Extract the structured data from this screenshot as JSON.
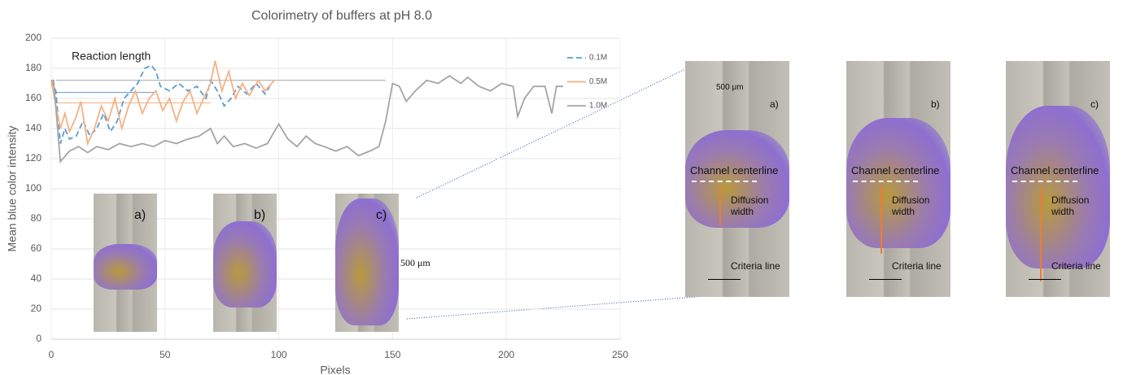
{
  "chart_data": {
    "type": "line",
    "title": "Colorimetry of buffers at pH 8.0",
    "xlabel": "Pixels",
    "ylabel": "Mean blue color intensity",
    "xlim": [
      0,
      250
    ],
    "xticks": [
      0,
      50,
      100,
      150,
      200,
      250
    ],
    "ylim": [
      0,
      200
    ],
    "yticks": [
      0,
      20,
      40,
      60,
      80,
      100,
      120,
      140,
      160,
      180,
      200
    ],
    "grid": true,
    "legend": "right",
    "annotation": "Reaction length",
    "series": [
      {
        "name": "0.1M",
        "color": "#5b9bd5",
        "dash": true,
        "x": [
          0,
          2,
          4,
          6,
          8,
          11,
          14,
          17,
          20,
          23,
          26,
          29,
          32,
          35,
          38,
          41,
          44,
          46,
          48,
          52,
          56,
          60,
          64,
          68,
          70,
          73,
          76,
          79,
          82,
          86,
          90,
          94,
          96
        ],
        "values": [
          172,
          165,
          130,
          140,
          133,
          135,
          145,
          135,
          140,
          150,
          138,
          145,
          160,
          165,
          170,
          180,
          182,
          178,
          168,
          165,
          170,
          165,
          168,
          160,
          172,
          165,
          155,
          160,
          168,
          163,
          170,
          163,
          168
        ]
      },
      {
        "name": "0.5M",
        "color": "#f4b183",
        "dash": false,
        "x": [
          0,
          2,
          4,
          6,
          8,
          11,
          13,
          16,
          19,
          22,
          25,
          28,
          31,
          34,
          37,
          40,
          43,
          46,
          49,
          52,
          55,
          58,
          61,
          64,
          67,
          70,
          72,
          75,
          78,
          81,
          84,
          87,
          91,
          94,
          98
        ],
        "values": [
          172,
          155,
          140,
          150,
          138,
          148,
          158,
          130,
          140,
          155,
          145,
          160,
          140,
          155,
          165,
          150,
          160,
          165,
          152,
          160,
          145,
          158,
          165,
          150,
          160,
          170,
          185,
          165,
          178,
          160,
          170,
          162,
          172,
          165,
          172
        ]
      },
      {
        "name": "1.0M",
        "color": "#a5a5a5",
        "dash": false,
        "x": [
          0,
          1,
          4,
          8,
          12,
          16,
          20,
          25,
          30,
          35,
          40,
          45,
          50,
          55,
          60,
          65,
          70,
          73,
          76,
          80,
          85,
          90,
          95,
          100,
          104,
          108,
          112,
          116,
          120,
          125,
          130,
          135,
          140,
          144,
          147,
          150,
          153,
          156,
          160,
          165,
          170,
          175,
          180,
          183,
          188,
          193,
          198,
          203,
          205,
          208,
          212,
          217,
          220,
          222,
          225
        ],
        "values": [
          172,
          172,
          118,
          125,
          128,
          124,
          128,
          126,
          130,
          128,
          130,
          128,
          132,
          130,
          133,
          135,
          140,
          130,
          135,
          128,
          130,
          127,
          130,
          143,
          133,
          128,
          135,
          130,
          128,
          125,
          128,
          122,
          125,
          128,
          145,
          170,
          168,
          158,
          165,
          172,
          170,
          175,
          170,
          174,
          168,
          165,
          170,
          168,
          148,
          160,
          168,
          168,
          150,
          168,
          168
        ]
      }
    ]
  },
  "insets": [
    {
      "label": "a)"
    },
    {
      "label": "b)"
    },
    {
      "label": "c)",
      "scale": "500 μm"
    }
  ],
  "panels": [
    {
      "scale": "500 μm",
      "label": "a)",
      "centerline": "Channel centerline",
      "width": "Diffusion width",
      "criteria": "Criteria line"
    },
    {
      "label": "b)",
      "centerline": "Channel centerline",
      "width": "Diffusion width",
      "criteria": "Criteria line"
    },
    {
      "label": "c)",
      "centerline": "Channel centerline",
      "width": "Diffusion width",
      "criteria": "Criteria line"
    }
  ]
}
